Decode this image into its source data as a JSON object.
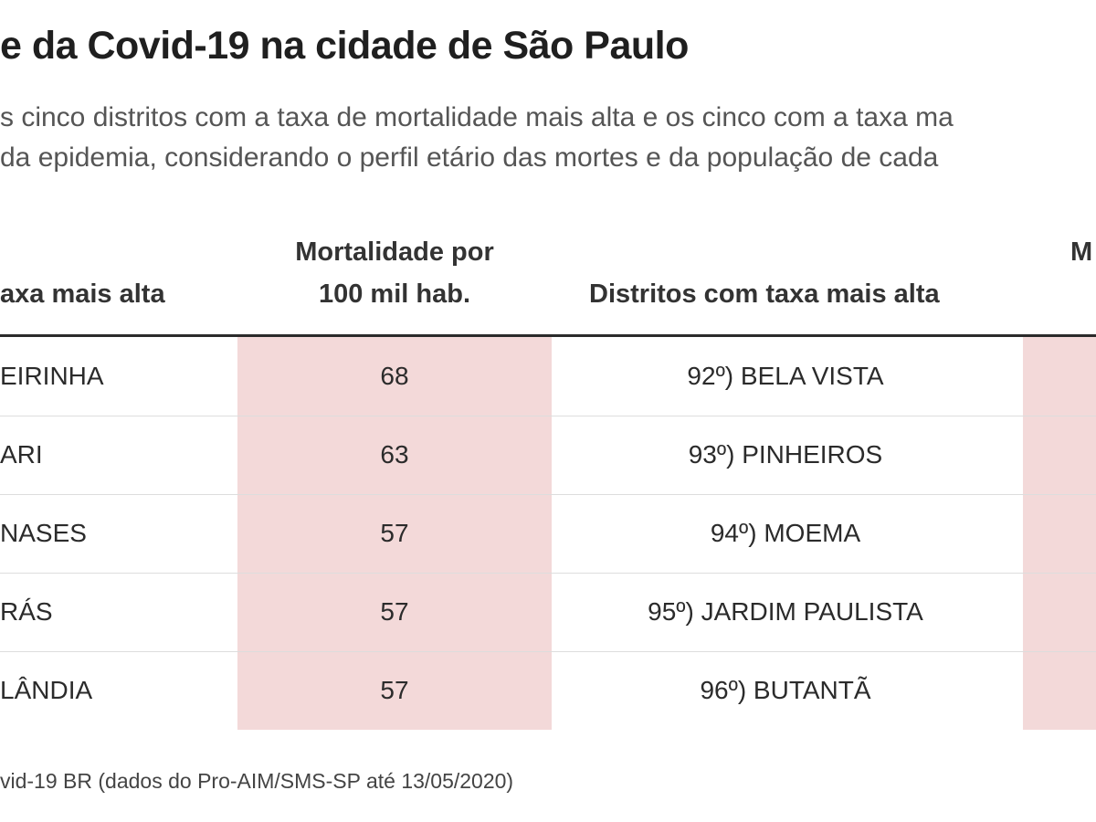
{
  "title": "e da Covid-19 na cidade de São Paulo",
  "subtitle": {
    "line1": "s cinco distritos com a taxa de mortalidade mais alta e os cinco com a taxa ma",
    "line2": " da epidemia, considerando o perfil etário das mortes e da população de cada"
  },
  "table": {
    "headers": {
      "col1": "axa mais alta",
      "col2_line1": "Mortalidade por",
      "col2_line2": "100 mil hab.",
      "col3": "Distritos com taxa mais alta",
      "col4": "M"
    },
    "rows": [
      {
        "district_left": "EIRINHA",
        "rate": "68",
        "district_right": "92º) BELA VISTA"
      },
      {
        "district_left": "ARI",
        "rate": "63",
        "district_right": "93º) PINHEIROS"
      },
      {
        "district_left": "NASES",
        "rate": "57",
        "district_right": "94º) MOEMA"
      },
      {
        "district_left": "RÁS",
        "rate": "57",
        "district_right": "95º) JARDIM PAULISTA"
      },
      {
        "district_left": "LÂNDIA",
        "rate": "57",
        "district_right": "96º) BUTANTÃ"
      }
    ]
  },
  "source": "vid-19 BR (dados do Pro-AIM/SMS-SP até 13/05/2020)",
  "colors": {
    "shade": "#f3d9d9",
    "rule": "#2b2b2b"
  }
}
